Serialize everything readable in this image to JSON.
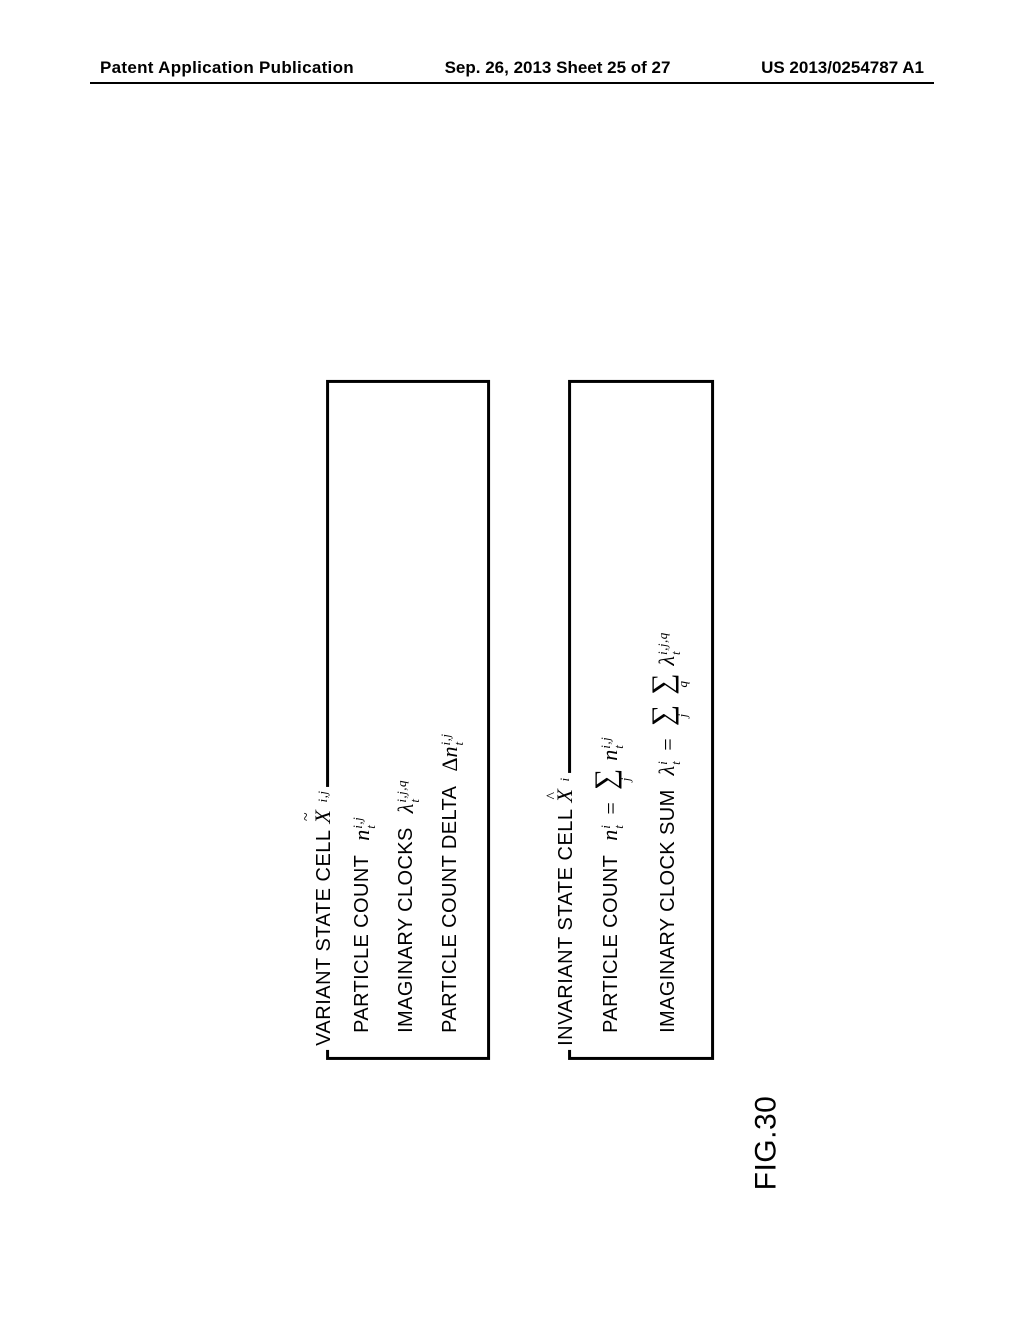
{
  "header": {
    "left": "Patent Application Publication",
    "center": "Sep. 26, 2013  Sheet 25 of 27",
    "right": "US 2013/0254787 A1"
  },
  "figure": {
    "label": "FIG.30",
    "variant": {
      "title_prefix": "VARIANT STATE CELL",
      "symbol_letter": "X",
      "symbol_sup": "i,j",
      "rows": {
        "particle_count": {
          "label": "PARTICLE COUNT",
          "var": "n",
          "sub": "t",
          "sup": "i,j"
        },
        "imaginary_clocks": {
          "label": "IMAGINARY CLOCKS",
          "var": "λ",
          "sub": "t",
          "sup": "i,j,q"
        },
        "particle_count_delta": {
          "label": "PARTICLE COUNT DELTA",
          "prefix": "Δ",
          "var": "n",
          "sub": "t",
          "sup": "i,j"
        }
      }
    },
    "invariant": {
      "title_prefix": "INVARIANT STATE CELL",
      "symbol_letter": "X",
      "symbol_sup": "i",
      "rows": {
        "particle_count": {
          "label": "PARTICLE COUNT",
          "lhs": {
            "var": "n",
            "sub": "t",
            "sup": "i"
          },
          "rhs_sum_index": "j",
          "rhs": {
            "var": "n",
            "sub": "t",
            "sup": "i,j"
          }
        },
        "imaginary_clock_sum": {
          "label": "IMAGINARY CLOCK SUM",
          "lhs": {
            "var": "λ",
            "sub": "t",
            "sup": "i"
          },
          "sum1_index": "j",
          "sum2_index": "q",
          "rhs": {
            "var": "λ",
            "sub": "t",
            "sup": "i,j,q"
          }
        }
      }
    }
  }
}
